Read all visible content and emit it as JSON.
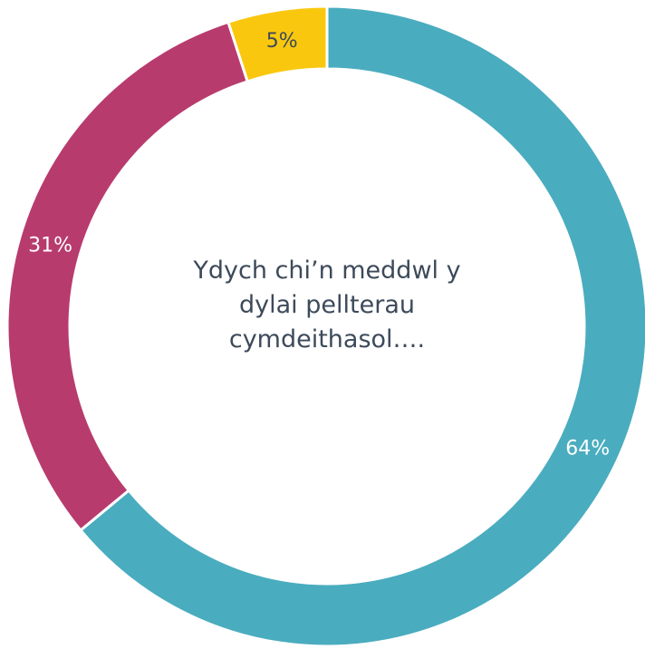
{
  "chart_data": {
    "type": "donut",
    "title": "Ydych chi’n meddwl y dylai pellterau cymdeithasol….",
    "values": [
      64,
      31,
      5
    ],
    "value_labels": [
      "64%",
      "31%",
      "5%"
    ],
    "colors": [
      "#4aacbf",
      "#b83b6e",
      "#f9c80e"
    ],
    "label_colors": [
      "#ffffff",
      "#ffffff",
      "#3d4a5a"
    ]
  }
}
